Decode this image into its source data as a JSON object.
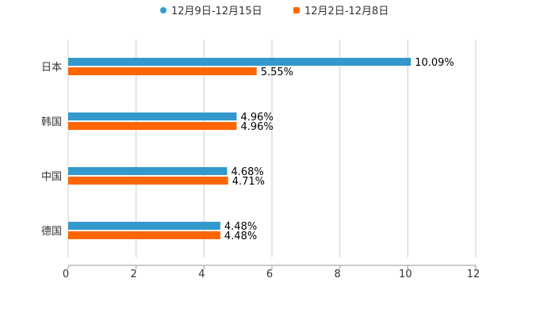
{
  "chart_data": {
    "type": "bar",
    "orientation": "horizontal",
    "title": "",
    "xlabel": "",
    "ylabel": "",
    "categories": [
      "日本",
      "韩国",
      "中国",
      "德国"
    ],
    "series": [
      {
        "name": "12月9日-12月15日",
        "color": "#3399cc",
        "values": [
          10.09,
          4.96,
          4.68,
          4.48
        ],
        "labels": [
          "10.09%",
          "4.96%",
          "4.68%",
          "4.48%"
        ]
      },
      {
        "name": "12月2日-12月8日",
        "color": "#ff6600",
        "values": [
          5.55,
          4.96,
          4.71,
          4.48
        ],
        "labels": [
          "5.55%",
          "4.96%",
          "4.71%",
          "4.48%"
        ]
      }
    ],
    "xlim": [
      0,
      12
    ],
    "xticks": [
      "0",
      "2",
      "4",
      "6",
      "8",
      "10",
      "12"
    ],
    "grid": true,
    "legend_position": "top-center"
  }
}
